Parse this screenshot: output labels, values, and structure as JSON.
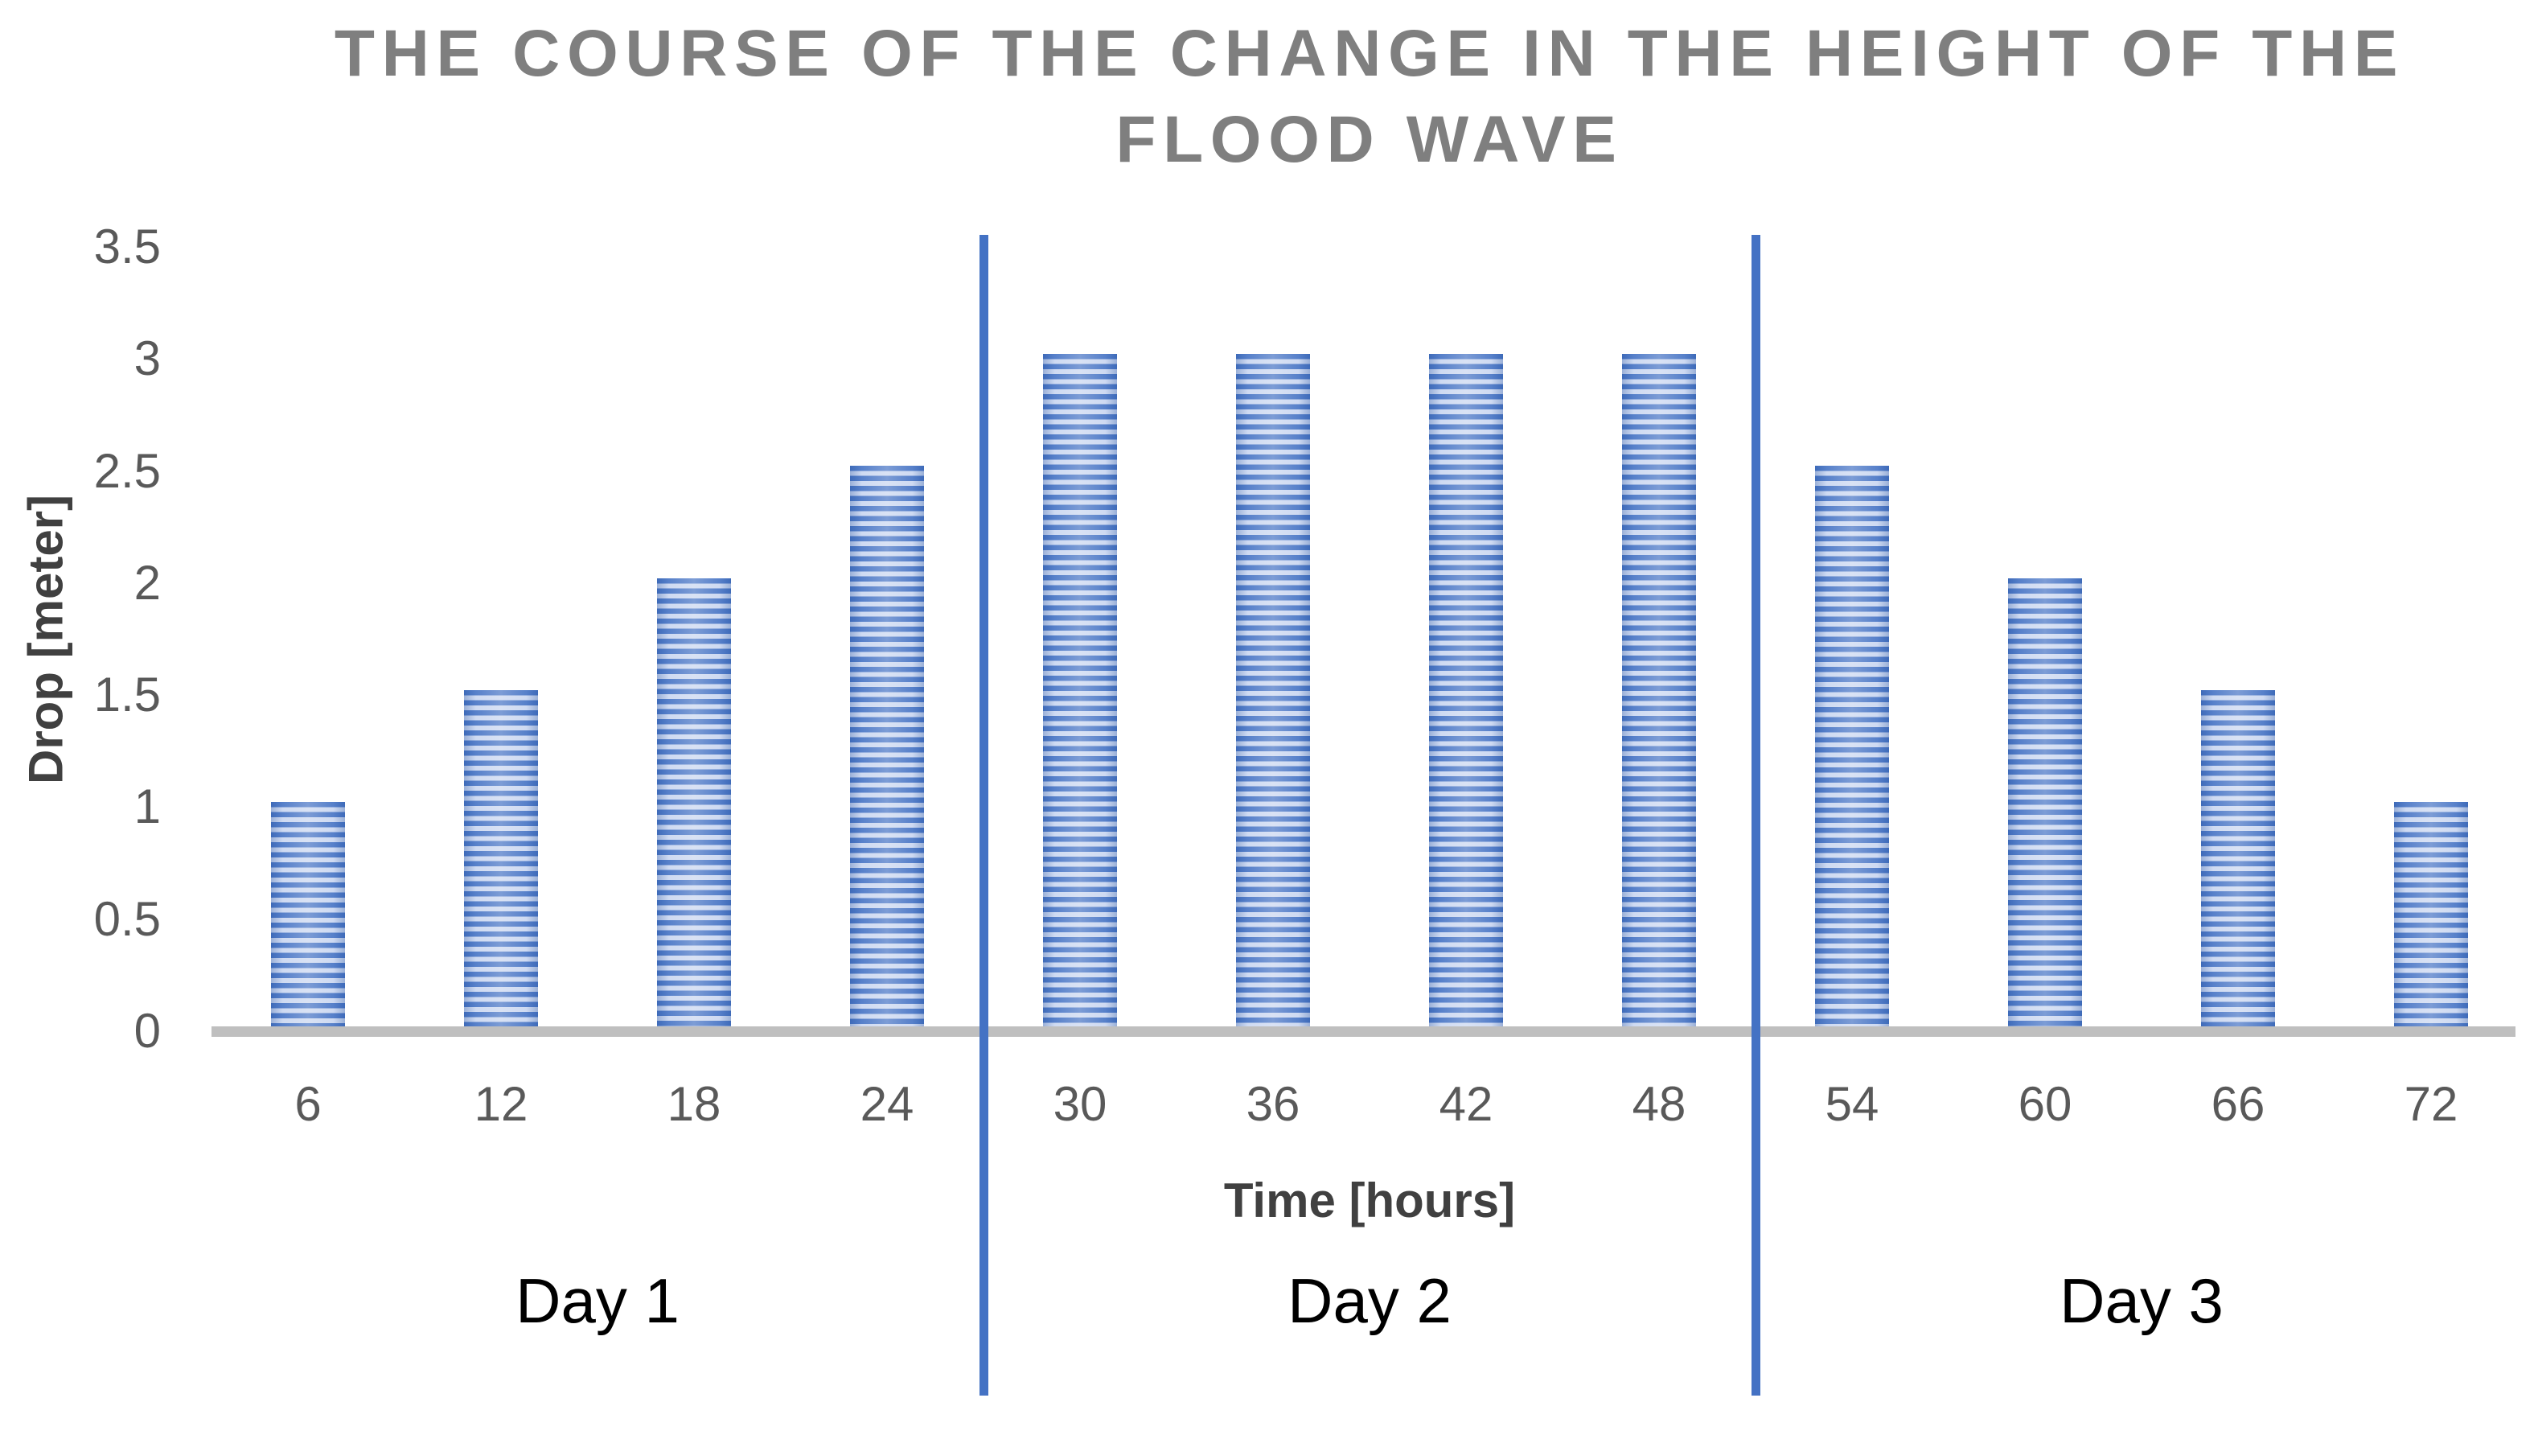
{
  "title": {
    "line1": "THE COURSE OF THE CHANGE IN THE HEIGHT OF THE",
    "line2": "FLOOD WAVE"
  },
  "y_axis": {
    "label": "Drop [meter]",
    "ticks": [
      "3.5",
      "3",
      "2.5",
      "2",
      "1.5",
      "1",
      "0.5",
      "0"
    ]
  },
  "x_axis": {
    "label": "Time [hours]",
    "ticks": [
      "6",
      "12",
      "18",
      "24",
      "30",
      "36",
      "42",
      "48",
      "54",
      "60",
      "66",
      "72"
    ]
  },
  "day_groups": [
    "Day 1",
    "Day 2",
    "Day 3"
  ],
  "colors": {
    "title_gray": "#7F7F7F",
    "tick_gray": "#595959",
    "axis_title_gray": "#404040",
    "day_label_black": "#000000",
    "bar_dark_blue": "#4472C4",
    "bar_light_blue": "#C9D6F0",
    "baseline_gray": "#BFBFBF",
    "separator_blue": "#4472C4"
  },
  "chart_data": {
    "type": "bar",
    "title": "THE COURSE OF THE CHANGE IN THE HEIGHT OF THE FLOOD WAVE",
    "xlabel": "Time [hours]",
    "ylabel": "Drop [meter]",
    "categories": [
      6,
      12,
      18,
      24,
      30,
      36,
      42,
      48,
      54,
      60,
      66,
      72
    ],
    "values": [
      1,
      1.5,
      2,
      2.5,
      3,
      3,
      3,
      3,
      2.5,
      2,
      1.5,
      1
    ],
    "ylim": [
      0,
      3.5
    ],
    "ytick_step": 0.5,
    "grid": false,
    "legend": "none",
    "bar_pattern": "horizontal-stripes",
    "day_separators_after_index": [
      3,
      7
    ],
    "day_labels": [
      "Day 1",
      "Day 2",
      "Day 3"
    ]
  }
}
